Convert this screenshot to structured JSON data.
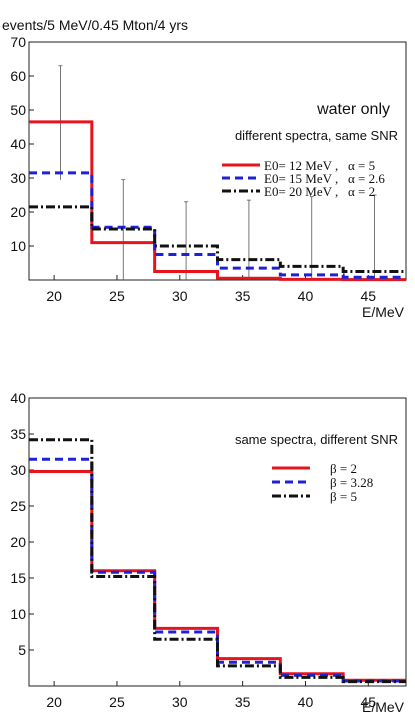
{
  "chart_data": [
    {
      "type": "line",
      "step": true,
      "title": "events/5 MeV/0.45 Mton/4 yrs",
      "annotation_main": "water only",
      "annotation_sub": "different spectra, same SNR",
      "xlabel": "E/MeV",
      "ylabel": "",
      "xlim": [
        18,
        48
      ],
      "ylim": [
        0,
        70
      ],
      "xticks": [
        20,
        25,
        30,
        35,
        40,
        45
      ],
      "yticks": [
        10,
        20,
        30,
        40,
        50,
        60,
        70
      ],
      "bin_edges": [
        18,
        23,
        28,
        33,
        38,
        43,
        48
      ],
      "legend_position": "top-right",
      "series": [
        {
          "name_left": "E0= 12 MeV ,",
          "name_right": "α = 5",
          "color": "#e8141c",
          "style": "solid",
          "values": [
            46.5,
            11,
            2.5,
            0.5,
            0.2,
            0.1
          ]
        },
        {
          "name_left": "E0= 15 MeV ,",
          "name_right": "α = 2.6",
          "color": "#1c22d8",
          "style": "dashed",
          "values": [
            31.5,
            15.5,
            7.5,
            3.5,
            1.5,
            0.8
          ]
        },
        {
          "name_left": "E0= 20 MeV ,",
          "name_right": "α = 2",
          "color": "#111111",
          "style": "dashdot",
          "values": [
            21.5,
            15,
            10,
            6,
            4,
            2.5
          ]
        }
      ],
      "errorbars": [
        {
          "x": 20.5,
          "low": 29.5,
          "high": 63
        },
        {
          "x": 25.5,
          "low": 0,
          "high": 29.5
        },
        {
          "x": 30.5,
          "low": 0,
          "high": 23
        },
        {
          "x": 35.5,
          "low": 0,
          "high": 23.5
        },
        {
          "x": 40.5,
          "low": 0,
          "high": 24.5
        },
        {
          "x": 45.5,
          "low": 0,
          "high": 25
        }
      ]
    },
    {
      "type": "line",
      "step": true,
      "title": "",
      "annotation_main": "",
      "annotation_sub": "same spectra, different SNR",
      "xlabel": "E/MeV",
      "ylabel": "",
      "xlim": [
        18,
        48
      ],
      "ylim": [
        0,
        40
      ],
      "xticks": [
        20,
        25,
        30,
        35,
        40,
        45
      ],
      "yticks": [
        5,
        10,
        15,
        20,
        25,
        30,
        35,
        40
      ],
      "bin_edges": [
        18,
        23,
        28,
        33,
        38,
        43,
        48
      ],
      "legend_position": "top-right",
      "series": [
        {
          "name_left": "β = 2",
          "name_right": "",
          "color": "#e8141c",
          "style": "solid",
          "values": [
            29.8,
            16,
            8,
            3.8,
            1.7,
            0.8
          ]
        },
        {
          "name_left": "β = 3.28",
          "name_right": "",
          "color": "#1c22d8",
          "style": "dashed",
          "values": [
            31.5,
            15.8,
            7.5,
            3.3,
            1.5,
            0.7
          ]
        },
        {
          "name_left": "β = 5",
          "name_right": "",
          "color": "#111111",
          "style": "dashdot",
          "values": [
            34.2,
            15.2,
            6.5,
            2.8,
            1.2,
            0.6
          ]
        }
      ],
      "errorbars": []
    }
  ]
}
